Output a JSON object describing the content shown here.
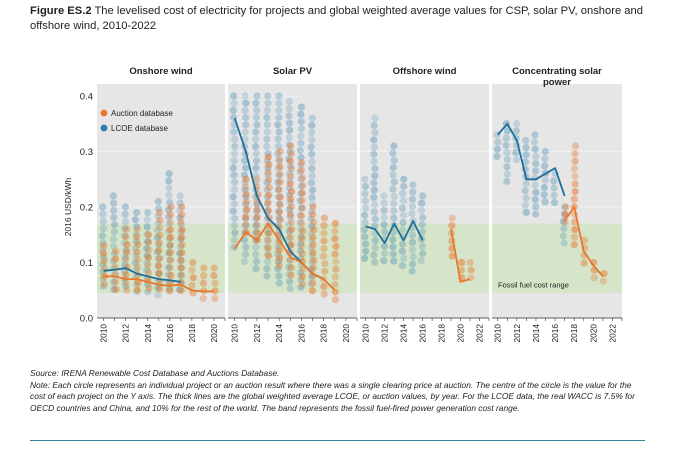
{
  "figure": {
    "label": "Figure ES.2",
    "title": "The levelised cost of electricity for projects and global weighted average values for CSP, solar PV, onshore and offshore wind, 2010-2022"
  },
  "colors": {
    "auction": "#e8762b",
    "lcoe": "#2a7ba8",
    "panel_bg": "#e6e6e6",
    "band": "#d2e3c4",
    "grid": "#ffffff",
    "axis": "#333333"
  },
  "chart_data": {
    "type": "scatter",
    "ylabel": "2016 USD/kWh",
    "ylim": [
      0,
      0.4
    ],
    "yticks": [
      "0.0",
      "0.1",
      "0.2",
      "0.3",
      "0.4"
    ],
    "yticks_values": [
      0,
      0.1,
      0.2,
      0.3,
      0.4
    ],
    "legend": [
      {
        "key": "auction",
        "label": "Auction database"
      },
      {
        "key": "lcoe",
        "label": "LCOE database"
      }
    ],
    "band_label": "Fossil fuel cost range",
    "band_range": [
      0.045,
      0.17
    ],
    "panels": [
      {
        "name": "onshore-wind",
        "title": "Onshore wind",
        "xlim": [
          2009.4,
          2021
        ],
        "xticks": [
          2010,
          2012,
          2014,
          2016,
          2018,
          2020
        ],
        "lcoe_columns": [
          {
            "year": 2010,
            "min": 0.05,
            "max": 0.2
          },
          {
            "year": 2011,
            "min": 0.045,
            "max": 0.22
          },
          {
            "year": 2012,
            "min": 0.045,
            "max": 0.2
          },
          {
            "year": 2013,
            "min": 0.045,
            "max": 0.19
          },
          {
            "year": 2014,
            "min": 0.045,
            "max": 0.19
          },
          {
            "year": 2015,
            "min": 0.04,
            "max": 0.21
          },
          {
            "year": 2016,
            "min": 0.04,
            "max": 0.26
          },
          {
            "year": 2017,
            "min": 0.04,
            "max": 0.22
          }
        ],
        "auction_columns": [
          {
            "year": 2010,
            "min": 0.06,
            "max": 0.13
          },
          {
            "year": 2011,
            "min": 0.05,
            "max": 0.12
          },
          {
            "year": 2012,
            "min": 0.05,
            "max": 0.16
          },
          {
            "year": 2013,
            "min": 0.05,
            "max": 0.16
          },
          {
            "year": 2014,
            "min": 0.045,
            "max": 0.15
          },
          {
            "year": 2015,
            "min": 0.045,
            "max": 0.19
          },
          {
            "year": 2016,
            "min": 0.04,
            "max": 0.2
          },
          {
            "year": 2017,
            "min": 0.04,
            "max": 0.2
          },
          {
            "year": 2018,
            "min": 0.035,
            "max": 0.1
          },
          {
            "year": 2019,
            "min": 0.035,
            "max": 0.09
          },
          {
            "year": 2020,
            "min": 0.035,
            "max": 0.09
          }
        ],
        "lcoe_line": {
          "x": [
            2010,
            2011,
            2012,
            2013,
            2014,
            2015,
            2016,
            2017
          ],
          "y": [
            0.085,
            0.087,
            0.09,
            0.08,
            0.075,
            0.07,
            0.068,
            0.065
          ]
        },
        "auction_line": {
          "x": [
            2010,
            2011,
            2012,
            2013,
            2014,
            2015,
            2016,
            2017,
            2018,
            2019,
            2020
          ],
          "y": [
            0.075,
            0.075,
            0.07,
            0.07,
            0.065,
            0.06,
            0.058,
            0.06,
            0.05,
            0.048,
            0.048
          ]
        }
      },
      {
        "name": "solar-pv",
        "title": "Solar PV",
        "xlim": [
          2009.4,
          2021
        ],
        "xticks": [
          2010,
          2012,
          2014,
          2016,
          2018,
          2020
        ],
        "lcoe_columns": [
          {
            "year": 2010,
            "min": 0.12,
            "max": 0.4
          },
          {
            "year": 2011,
            "min": 0.1,
            "max": 0.4
          },
          {
            "year": 2012,
            "min": 0.08,
            "max": 0.4
          },
          {
            "year": 2013,
            "min": 0.07,
            "max": 0.4
          },
          {
            "year": 2014,
            "min": 0.06,
            "max": 0.4
          },
          {
            "year": 2015,
            "min": 0.05,
            "max": 0.39
          },
          {
            "year": 2016,
            "min": 0.05,
            "max": 0.38
          },
          {
            "year": 2017,
            "min": 0.05,
            "max": 0.36
          }
        ],
        "auction_columns": [
          {
            "year": 2011,
            "min": 0.15,
            "max": 0.25
          },
          {
            "year": 2012,
            "min": 0.13,
            "max": 0.25
          },
          {
            "year": 2013,
            "min": 0.1,
            "max": 0.29
          },
          {
            "year": 2014,
            "min": 0.09,
            "max": 0.3
          },
          {
            "year": 2015,
            "min": 0.07,
            "max": 0.31
          },
          {
            "year": 2016,
            "min": 0.06,
            "max": 0.28
          },
          {
            "year": 2017,
            "min": 0.04,
            "max": 0.2
          },
          {
            "year": 2018,
            "min": 0.035,
            "max": 0.18
          },
          {
            "year": 2019,
            "min": 0.03,
            "max": 0.17
          }
        ],
        "lcoe_line": {
          "x": [
            2010,
            2011,
            2012,
            2013,
            2014,
            2015,
            2016,
            2017,
            2018
          ],
          "y": [
            0.36,
            0.3,
            0.22,
            0.18,
            0.16,
            0.12,
            0.1,
            0.08,
            0.07
          ]
        },
        "auction_line": {
          "x": [
            2010,
            2011,
            2012,
            2013,
            2014,
            2015,
            2016,
            2017,
            2018,
            2019
          ],
          "y": [
            0.125,
            0.155,
            0.14,
            0.17,
            0.14,
            0.11,
            0.1,
            0.08,
            0.07,
            0.05
          ]
        }
      },
      {
        "name": "offshore-wind",
        "title": "Offshore wind",
        "xlim": [
          2009.4,
          2023
        ],
        "xticks": [
          2010,
          2012,
          2014,
          2016,
          2018,
          2020,
          2022
        ],
        "lcoe_columns": [
          {
            "year": 2010,
            "min": 0.1,
            "max": 0.25
          },
          {
            "year": 2011,
            "min": 0.09,
            "max": 0.36
          },
          {
            "year": 2012,
            "min": 0.1,
            "max": 0.22
          },
          {
            "year": 2013,
            "min": 0.09,
            "max": 0.31
          },
          {
            "year": 2014,
            "min": 0.09,
            "max": 0.25
          },
          {
            "year": 2015,
            "min": 0.08,
            "max": 0.24
          },
          {
            "year": 2016,
            "min": 0.1,
            "max": 0.22
          }
        ],
        "auction_columns": [
          {
            "year": 2019,
            "min": 0.1,
            "max": 0.18
          },
          {
            "year": 2020,
            "min": 0.06,
            "max": 0.1
          },
          {
            "year": 2021,
            "min": 0.07,
            "max": 0.1
          }
        ],
        "lcoe_line": {
          "x": [
            2010,
            2011,
            2012,
            2013,
            2014,
            2015,
            2016
          ],
          "y": [
            0.165,
            0.16,
            0.135,
            0.17,
            0.14,
            0.175,
            0.14
          ]
        },
        "auction_line": {
          "x": [
            2019,
            2020,
            2021
          ],
          "y": [
            0.16,
            0.065,
            0.07
          ]
        }
      },
      {
        "name": "concentrating-solar-power",
        "title": "Concentrating solar power",
        "xlim": [
          2009.4,
          2023
        ],
        "xticks": [
          2010,
          2012,
          2014,
          2016,
          2018,
          2020,
          2022
        ],
        "lcoe_columns": [
          {
            "year": 2010,
            "min": 0.28,
            "max": 0.33
          },
          {
            "year": 2011,
            "min": 0.24,
            "max": 0.35
          },
          {
            "year": 2012,
            "min": 0.28,
            "max": 0.35
          },
          {
            "year": 2013,
            "min": 0.18,
            "max": 0.32
          },
          {
            "year": 2014,
            "min": 0.18,
            "max": 0.33
          },
          {
            "year": 2015,
            "min": 0.2,
            "max": 0.3
          },
          {
            "year": 2016,
            "min": 0.2,
            "max": 0.26
          },
          {
            "year": 2017,
            "min": 0.13,
            "max": 0.2
          }
        ],
        "auction_columns": [
          {
            "year": 2017,
            "min": 0.16,
            "max": 0.2
          },
          {
            "year": 2018,
            "min": 0.12,
            "max": 0.31
          },
          {
            "year": 2019,
            "min": 0.09,
            "max": 0.14
          },
          {
            "year": 2020,
            "min": 0.06,
            "max": 0.1
          },
          {
            "year": 2021,
            "min": 0.06,
            "max": 0.08
          }
        ],
        "lcoe_line": {
          "x": [
            2010,
            2011,
            2012,
            2013,
            2014,
            2015,
            2016,
            2017
          ],
          "y": [
            0.33,
            0.35,
            0.32,
            0.25,
            0.25,
            0.26,
            0.27,
            0.22
          ]
        },
        "auction_line": {
          "x": [
            2017,
            2018,
            2019,
            2020,
            2021
          ],
          "y": [
            0.175,
            0.2,
            0.12,
            0.095,
            0.075
          ]
        }
      }
    ]
  },
  "notes": {
    "source": "Source: IRENA Renewable Cost Database and Auctions Database.",
    "note": "Note: Each circle represents an individual project or an auction result where there was a single clearing price at auction. The centre of the circle is the value for the cost of each project on the Y axis. The thick lines are the global weighted average LCOE, or auction values, by year. For the LCOE data, the real WACC is 7.5% for OECD countries and China, and 10% for the rest of the world. The band represents the fossil fuel-fired power generation cost range."
  }
}
